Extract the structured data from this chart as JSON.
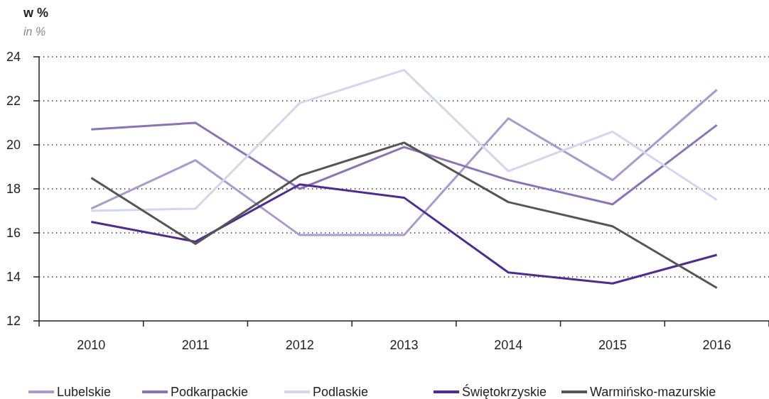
{
  "chart_data": {
    "type": "line",
    "ylabel": "w %",
    "subtitle": "in %",
    "categories": [
      "2010",
      "2011",
      "2012",
      "2013",
      "2014",
      "2015",
      "2016"
    ],
    "series": [
      {
        "name": "Lubelskie",
        "color": "#a99bcf",
        "values": [
          17.1,
          19.3,
          15.9,
          15.9,
          21.2,
          18.4,
          22.5
        ]
      },
      {
        "name": "Podkarpackie",
        "color": "#8a73bb",
        "values": [
          20.7,
          21.0,
          18.0,
          19.9,
          18.4,
          17.3,
          20.9
        ]
      },
      {
        "name": "Podlaskie",
        "color": "#d3d7ee",
        "values": [
          17.0,
          17.1,
          21.9,
          23.4,
          18.8,
          20.6,
          17.5
        ]
      },
      {
        "name": "Świętokrzyskie",
        "color": "#4e2a97",
        "values": [
          16.5,
          15.6,
          18.2,
          17.6,
          14.2,
          13.7,
          15.0
        ]
      },
      {
        "name": "Warmińsko-mazurskie",
        "color": "#555555",
        "values": [
          18.5,
          15.5,
          18.6,
          20.1,
          17.4,
          16.3,
          13.5
        ]
      }
    ],
    "ylim": [
      12,
      24
    ],
    "yticks": [
      12,
      14,
      16,
      18,
      20,
      22,
      24
    ],
    "grid": "y",
    "legend": "bottom",
    "marker": "none",
    "line_style": "solid"
  }
}
